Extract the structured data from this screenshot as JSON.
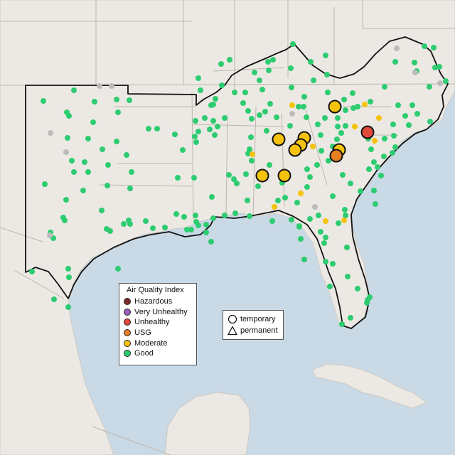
{
  "legend": {
    "title": "Air Quality Index",
    "categories": [
      {
        "label": "Hazardous",
        "color": "#7e2a2a"
      },
      {
        "label": "Very Unhealthy",
        "color": "#9b5fc0"
      },
      {
        "label": "Unhealthy",
        "color": "#e24a3b"
      },
      {
        "label": "USG",
        "color": "#e67e22"
      },
      {
        "label": "Moderate",
        "color": "#f5c20c"
      },
      {
        "label": "Good",
        "color": "#2ecc71"
      }
    ]
  },
  "shape_legend": {
    "temporary": "temporary",
    "permanent": "permanent"
  },
  "colors": {
    "water": "#c9d9e6",
    "land": "#ece9e4",
    "border": "#111111",
    "no_data": "#bbbbbb"
  }
}
